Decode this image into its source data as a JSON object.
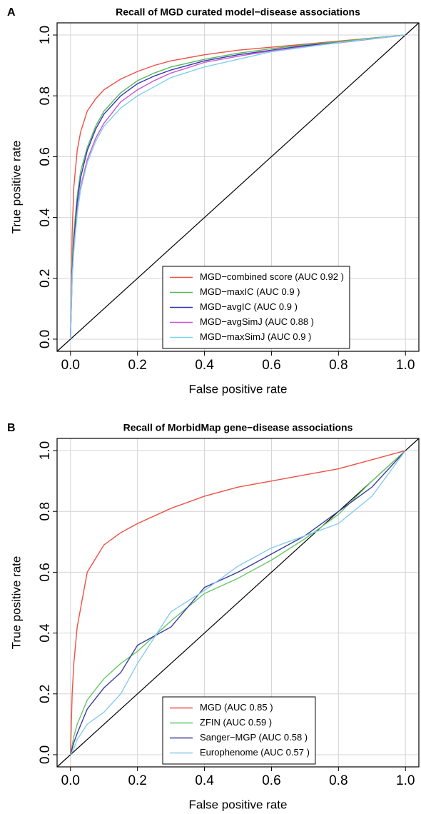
{
  "chart_data": [
    {
      "type": "line",
      "panel_label": "A",
      "title": "Recall of MGD curated model−disease associations",
      "x_label": "False positive rate",
      "y_label": "True positive rate",
      "x": [
        0,
        0.005,
        0.01,
        0.02,
        0.03,
        0.05,
        0.075,
        0.1,
        0.15,
        0.2,
        0.25,
        0.3,
        0.4,
        0.5,
        0.6,
        0.7,
        0.8,
        0.9,
        1.0
      ],
      "series": [
        {
          "name": "MGD−combined score (AUC 0.92 )",
          "color": "#ef4f45",
          "values": [
            0,
            0.35,
            0.5,
            0.62,
            0.68,
            0.75,
            0.79,
            0.82,
            0.855,
            0.88,
            0.9,
            0.915,
            0.935,
            0.95,
            0.96,
            0.97,
            0.98,
            0.99,
            1.0
          ]
        },
        {
          "name": "MGD−maxIC (AUC 0.9 )",
          "color": "#55bb55",
          "values": [
            0,
            0.25,
            0.35,
            0.47,
            0.55,
            0.63,
            0.7,
            0.75,
            0.81,
            0.85,
            0.875,
            0.895,
            0.92,
            0.94,
            0.955,
            0.968,
            0.978,
            0.99,
            1.0
          ]
        },
        {
          "name": "MGD−avgIC (AUC 0.9 )",
          "color": "#3434b8",
          "values": [
            0,
            0.22,
            0.32,
            0.45,
            0.53,
            0.62,
            0.69,
            0.74,
            0.8,
            0.84,
            0.865,
            0.885,
            0.915,
            0.935,
            0.95,
            0.965,
            0.975,
            0.988,
            1.0
          ]
        },
        {
          "name": "MGD−avgSimJ (AUC 0.88 )",
          "color": "#cc55cc",
          "values": [
            0,
            0.2,
            0.3,
            0.42,
            0.5,
            0.59,
            0.66,
            0.71,
            0.78,
            0.82,
            0.85,
            0.875,
            0.91,
            0.93,
            0.948,
            0.962,
            0.974,
            0.987,
            1.0
          ]
        },
        {
          "name": "MGD−maxSimJ (AUC 0.9 )",
          "color": "#7fd0ee",
          "values": [
            0,
            0.2,
            0.29,
            0.41,
            0.49,
            0.58,
            0.65,
            0.7,
            0.76,
            0.8,
            0.83,
            0.86,
            0.895,
            0.92,
            0.945,
            0.96,
            0.975,
            0.988,
            1.0
          ]
        }
      ],
      "xlim": [
        -0.04,
        1.04
      ],
      "ylim": [
        -0.04,
        1.04
      ],
      "xticks": [
        {
          "value": 0,
          "label": "0.0"
        },
        0.2,
        0.4,
        0.6,
        0.8,
        {
          "value": 1,
          "label": "1.0"
        }
      ],
      "yticks": [
        {
          "value": 0,
          "label": "0.0"
        },
        0.2,
        0.4,
        0.6,
        0.8,
        {
          "value": 1,
          "label": "1.0"
        }
      ],
      "grid": true,
      "diagonal": true,
      "legend": "bottom-right"
    },
    {
      "type": "line",
      "panel_label": "B",
      "title": "Recall of MorbidMap gene−disease associations",
      "x_label": "False positive rate",
      "y_label": "True positive rate",
      "x": [
        0,
        0.005,
        0.01,
        0.02,
        0.05,
        0.1,
        0.15,
        0.2,
        0.3,
        0.4,
        0.5,
        0.6,
        0.7,
        0.8,
        0.9,
        1.0
      ],
      "series": [
        {
          "name": "MGD (AUC 0.85 )",
          "color": "#ef4f45",
          "values": [
            0,
            0.2,
            0.3,
            0.42,
            0.6,
            0.69,
            0.73,
            0.76,
            0.81,
            0.85,
            0.88,
            0.9,
            0.92,
            0.94,
            0.97,
            1.0
          ]
        },
        {
          "name": "ZFIN (AUC 0.59 )",
          "color": "#66c866",
          "values": [
            0,
            0.03,
            0.06,
            0.1,
            0.18,
            0.25,
            0.3,
            0.34,
            0.44,
            0.53,
            0.58,
            0.64,
            0.71,
            0.79,
            0.9,
            1.0
          ]
        },
        {
          "name": "Sanger−MGP (AUC 0.58 )",
          "color": "#3a3aa0",
          "values": [
            0,
            0.02,
            0.04,
            0.07,
            0.15,
            0.22,
            0.27,
            0.36,
            0.42,
            0.55,
            0.6,
            0.66,
            0.72,
            0.8,
            0.88,
            1.0
          ]
        },
        {
          "name": "Europhenome (AUC 0.57 )",
          "color": "#88ccee",
          "values": [
            0,
            0.01,
            0.02,
            0.05,
            0.1,
            0.14,
            0.2,
            0.3,
            0.47,
            0.54,
            0.62,
            0.68,
            0.72,
            0.76,
            0.85,
            1.0
          ]
        }
      ],
      "xlim": [
        -0.04,
        1.04
      ],
      "ylim": [
        -0.04,
        1.04
      ],
      "xticks": [
        {
          "value": 0,
          "label": "0.0"
        },
        0.2,
        0.4,
        0.6,
        0.8,
        {
          "value": 1,
          "label": "1.0"
        }
      ],
      "yticks": [
        {
          "value": 0,
          "label": "0.0"
        },
        0.2,
        0.4,
        0.6,
        0.8,
        {
          "value": 1,
          "label": "1.0"
        }
      ],
      "grid": true,
      "diagonal": true,
      "legend": "bottom-right"
    }
  ]
}
